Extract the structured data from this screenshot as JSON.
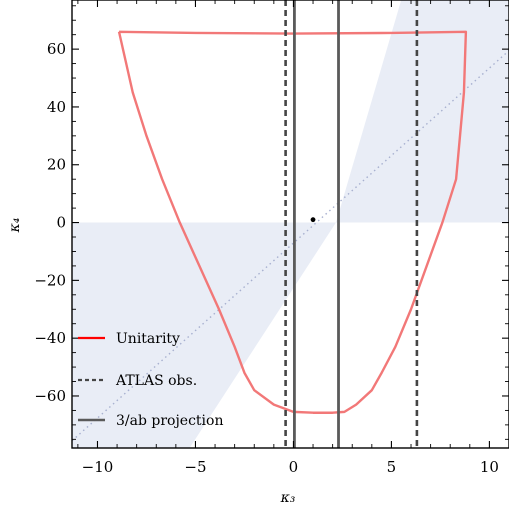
{
  "chart_data": {
    "type": "line",
    "xlabel": "κ₃",
    "ylabel": "κ₄",
    "xlim": [
      -11.3,
      11.0
    ],
    "ylim": [
      -78,
      77
    ],
    "x_ticks": [
      -10,
      -5,
      0,
      5,
      10
    ],
    "y_ticks": [
      -60,
      -40,
      -20,
      0,
      20,
      40,
      60
    ],
    "x_tick_labels": [
      "−10",
      "−5",
      "0",
      "5",
      "10"
    ],
    "y_tick_labels": [
      "−60",
      "−40",
      "−20",
      "0",
      "20",
      "40",
      "60"
    ],
    "unitarity_boundary": {
      "x": [
        -8.9,
        -8.7,
        -8.2,
        -7.5,
        -6.7,
        -5.8,
        -4.8,
        -3.8,
        -3.0,
        -2.5,
        -2.0,
        -1.0,
        0.0,
        1.0,
        2.0,
        2.6,
        3.2,
        4.0,
        4.5,
        5.2,
        6.0,
        6.8,
        7.6,
        8.3,
        8.7,
        8.8,
        5.0,
        0.0,
        -5.0,
        -8.9
      ],
      "y": [
        66,
        60,
        45,
        30,
        15,
        0,
        -15,
        -30,
        -43,
        -52,
        -58,
        -63,
        -65.5,
        -65.8,
        -65.8,
        -65.5,
        -63,
        -58,
        -52,
        -43,
        -30,
        -15,
        0,
        15,
        45,
        66,
        65.6,
        65.4,
        65.6,
        66
      ]
    },
    "atlas_obs": [
      -0.4,
      6.3
    ],
    "projection_3ab": [
      0.05,
      2.3
    ],
    "sm_point": {
      "x": 1,
      "y": 1
    },
    "diagonal_line": {
      "x": [
        -11.3,
        11.0
      ],
      "y": [
        -75.5,
        59.5
      ]
    },
    "shaded_region_color": "#e9edf6",
    "colors": {
      "unitarity": "#f27878",
      "unitarity_legend": "#ff0000",
      "atlas": "#454545",
      "projection": "#5a5a5a",
      "diagonal": "#a7b0cf"
    },
    "legend": {
      "placement": "lower-left",
      "entries": [
        {
          "label": "Unitarity",
          "style": "solid-red"
        },
        {
          "label": "ATLAS obs.",
          "style": "dashed"
        },
        {
          "label": "3/ab projection",
          "style": "solid-gray"
        }
      ]
    }
  }
}
